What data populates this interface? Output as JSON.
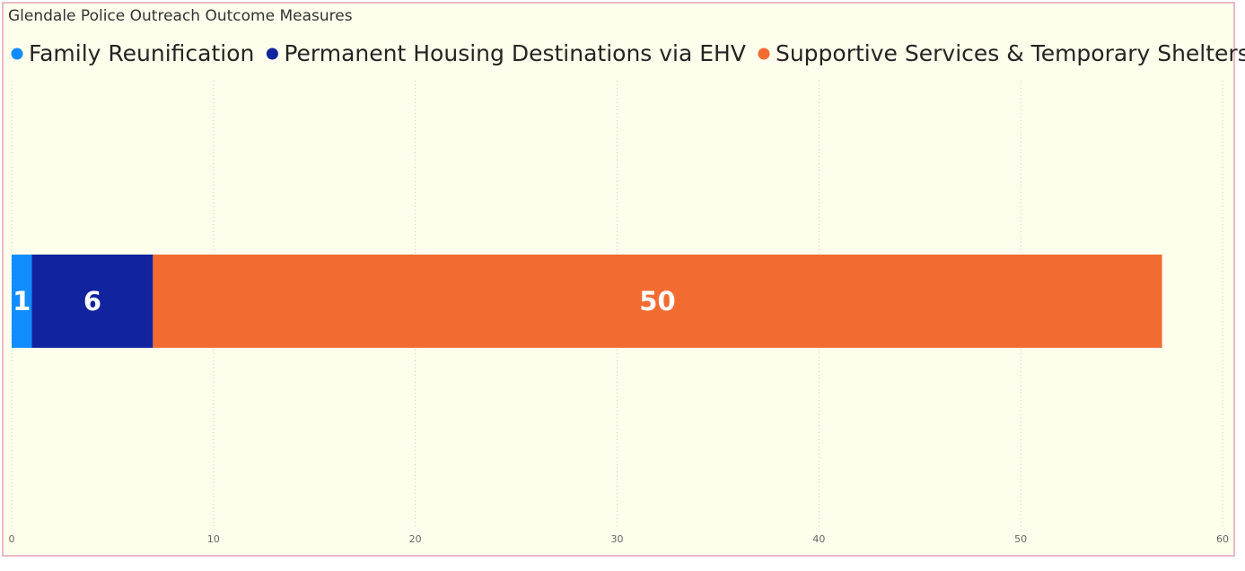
{
  "chart_data": {
    "type": "stacked-bar-horizontal",
    "title": "Glendale Police Outreach Outcome Measures",
    "series": [
      {
        "name": "Family Reunification",
        "color": "#118dff",
        "values": [
          1
        ]
      },
      {
        "name": "Permanent Housing Destinations via EHV",
        "color": "#12239e",
        "values": [
          6
        ]
      },
      {
        "name": "Supportive Services & Temporary Shelters",
        "color": "#f26b31",
        "values": [
          50
        ]
      }
    ],
    "xlim": [
      0,
      60
    ],
    "xticks": [
      0,
      10,
      20,
      30,
      40,
      50,
      60
    ],
    "grid": true,
    "legend": "top"
  }
}
